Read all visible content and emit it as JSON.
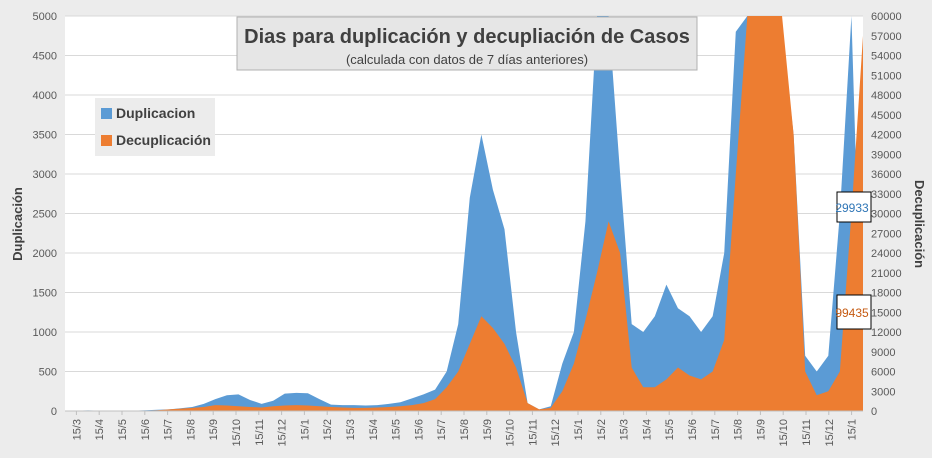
{
  "chart_data": {
    "type": "area",
    "title": "Dias para duplicación y decupliación de Casos",
    "subtitle": "(calculada con datos de 7 días anteriores)",
    "ylabel": "Duplicación",
    "y2label": "Decuplicación",
    "ylim": [
      0,
      5000
    ],
    "y2lim": [
      0,
      60000
    ],
    "yticks": [
      "0",
      "500",
      "1000",
      "1500",
      "2000",
      "2500",
      "3000",
      "3500",
      "4000",
      "4500",
      "5000"
    ],
    "y2ticks": [
      "0",
      "3000",
      "6000",
      "9000",
      "12000",
      "15000",
      "18000",
      "21000",
      "24000",
      "27000",
      "30000",
      "33000",
      "36000",
      "39000",
      "42000",
      "45000",
      "48000",
      "51000",
      "54000",
      "57000",
      "60000"
    ],
    "xticks": [
      "15/3",
      "15/4",
      "15/5",
      "15/6",
      "15/7",
      "15/8",
      "15/9",
      "15/10",
      "15/11",
      "15/12",
      "15/1",
      "15/2",
      "15/3",
      "15/4",
      "15/5",
      "15/6",
      "15/7",
      "15/8",
      "15/9",
      "15/10",
      "15/11",
      "15/12",
      "15/1",
      "15/2",
      "15/3",
      "15/4",
      "15/5",
      "15/6",
      "15/7",
      "15/8",
      "15/9",
      "15/10",
      "15/11",
      "15/12",
      "15/1"
    ],
    "grid": true,
    "legend_position": "top-left",
    "series": [
      {
        "name": "Duplicacion",
        "axis": "left",
        "color": "#5b9bd5",
        "values": [
          0,
          5,
          8,
          5,
          5,
          5,
          5,
          10,
          15,
          20,
          35,
          50,
          90,
          150,
          200,
          210,
          140,
          90,
          130,
          220,
          230,
          225,
          150,
          80,
          75,
          75,
          70,
          75,
          90,
          110,
          160,
          210,
          270,
          500,
          1100,
          2700,
          3500,
          2800,
          2300,
          1000,
          100,
          20,
          60,
          600,
          1000,
          2400,
          5000,
          5000,
          3000,
          1100,
          1000,
          1200,
          1600,
          1300,
          1200,
          1000,
          1200,
          2000,
          4800,
          5000,
          5000,
          5000,
          4800,
          3500,
          700,
          500,
          700,
          2500,
          5000,
          200
        ]
      },
      {
        "name": "Decuplicación",
        "axis": "right",
        "color": "#ed7d31",
        "values": [
          0,
          0,
          0,
          0,
          0,
          0,
          0,
          60,
          120,
          240,
          360,
          480,
          600,
          900,
          840,
          720,
          600,
          540,
          720,
          840,
          900,
          840,
          720,
          600,
          540,
          480,
          480,
          540,
          600,
          720,
          900,
          1200,
          1800,
          3600,
          6000,
          10200,
          14400,
          12600,
          10200,
          6600,
          1200,
          240,
          480,
          3000,
          7200,
          13800,
          21000,
          28800,
          24000,
          6600,
          3600,
          3600,
          4800,
          6600,
          5400,
          4800,
          6000,
          10800,
          36000,
          60000,
          60000,
          60000,
          60000,
          42000,
          6000,
          2400,
          3000,
          6000,
          30000,
          57000
        ]
      }
    ],
    "callouts": [
      {
        "value": "29933",
        "color": "#2e75b6"
      },
      {
        "value": "99435",
        "color": "#c55a11"
      }
    ]
  }
}
